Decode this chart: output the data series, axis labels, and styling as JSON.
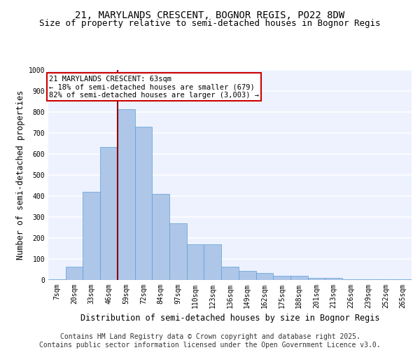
{
  "title_line1": "21, MARYLANDS CRESCENT, BOGNOR REGIS, PO22 8DW",
  "title_line2": "Size of property relative to semi-detached houses in Bognor Regis",
  "xlabel": "Distribution of semi-detached houses by size in Bognor Regis",
  "ylabel": "Number of semi-detached properties",
  "categories": [
    "7sqm",
    "20sqm",
    "33sqm",
    "46sqm",
    "59sqm",
    "72sqm",
    "84sqm",
    "97sqm",
    "110sqm",
    "123sqm",
    "136sqm",
    "149sqm",
    "162sqm",
    "175sqm",
    "188sqm",
    "201sqm",
    "213sqm",
    "226sqm",
    "239sqm",
    "252sqm",
    "265sqm"
  ],
  "values": [
    5,
    65,
    420,
    635,
    815,
    730,
    410,
    270,
    170,
    170,
    65,
    45,
    35,
    20,
    20,
    10,
    10,
    5,
    5,
    5,
    5
  ],
  "bar_color": "#aec6e8",
  "bar_edge_color": "#5a9fd4",
  "marker_label": "21 MARYLANDS CRESCENT: 63sqm",
  "annotation_line2": "← 18% of semi-detached houses are smaller (679)",
  "annotation_line3": "82% of semi-detached houses are larger (3,003) →",
  "vline_color": "#8b0000",
  "vline_x": 3.5,
  "annotation_box_color": "#ffffff",
  "annotation_box_edge": "#cc0000",
  "ylim": [
    0,
    1000
  ],
  "yticks": [
    0,
    100,
    200,
    300,
    400,
    500,
    600,
    700,
    800,
    900,
    1000
  ],
  "footnote_line1": "Contains HM Land Registry data © Crown copyright and database right 2025.",
  "footnote_line2": "Contains public sector information licensed under the Open Government Licence v3.0.",
  "bg_color": "#eef2ff",
  "grid_color": "#ffffff",
  "title_fontsize": 10,
  "subtitle_fontsize": 9,
  "axis_label_fontsize": 8.5,
  "tick_fontsize": 7,
  "annotation_fontsize": 7.5,
  "footnote_fontsize": 7
}
